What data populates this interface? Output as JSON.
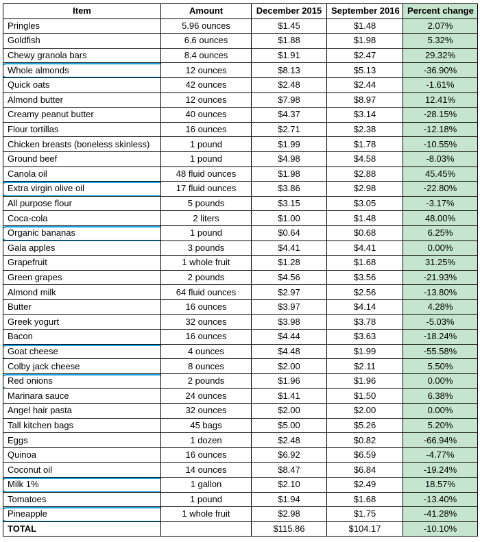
{
  "chart_data": {
    "type": "table",
    "columns": [
      "Item",
      "Amount",
      "December 2015",
      "September 2016",
      "Percent change"
    ],
    "rows": [
      {
        "item": "Pringles",
        "amount": "5.96 ounces",
        "dec": "$1.45",
        "sep": "$1.48",
        "pct": "2.07%",
        "highlighted": false
      },
      {
        "item": "Goldfish",
        "amount": "6.6 ounces",
        "dec": "$1.88",
        "sep": "$1.98",
        "pct": "5.32%",
        "highlighted": false
      },
      {
        "item": "Chewy granola bars",
        "amount": "8.4 ounces",
        "dec": "$1.91",
        "sep": "$2.47",
        "pct": "29.32%",
        "highlighted": false
      },
      {
        "item": "Whole almonds",
        "amount": "12 ounces",
        "dec": "$8.13",
        "sep": "$5.13",
        "pct": "-36.90%",
        "highlighted": true
      },
      {
        "item": "Quick oats",
        "amount": "42 ounces",
        "dec": "$2.48",
        "sep": "$2.44",
        "pct": "-1.61%",
        "highlighted": false
      },
      {
        "item": "Almond butter",
        "amount": "12 ounces",
        "dec": "$7.98",
        "sep": "$8.97",
        "pct": "12.41%",
        "highlighted": false
      },
      {
        "item": "Creamy peanut butter",
        "amount": "40 ounces",
        "dec": "$4.37",
        "sep": "$3.14",
        "pct": "-28.15%",
        "highlighted": false
      },
      {
        "item": "Flour tortillas",
        "amount": "16 ounces",
        "dec": "$2.71",
        "sep": "$2.38",
        "pct": "-12.18%",
        "highlighted": false
      },
      {
        "item": "Chicken breasts (boneless skinless)",
        "amount": "1 pound",
        "dec": "$1.99",
        "sep": "$1.78",
        "pct": "-10.55%",
        "highlighted": false
      },
      {
        "item": "Ground beef",
        "amount": "1 pound",
        "dec": "$4.98",
        "sep": "$4.58",
        "pct": "-8.03%",
        "highlighted": false
      },
      {
        "item": "Canola oil",
        "amount": "48 fluid ounces",
        "dec": "$1.98",
        "sep": "$2.88",
        "pct": "45.45%",
        "highlighted": false
      },
      {
        "item": "Extra virgin olive oil",
        "amount": "17 fluid ounces",
        "dec": "$3.86",
        "sep": "$2.98",
        "pct": "-22.80%",
        "highlighted": true
      },
      {
        "item": "All purpose flour",
        "amount": "5 pounds",
        "dec": "$3.15",
        "sep": "$3.05",
        "pct": "-3.17%",
        "highlighted": false
      },
      {
        "item": "Coca-cola",
        "amount": "2 liters",
        "dec": "$1.00",
        "sep": "$1.48",
        "pct": "48.00%",
        "highlighted": false
      },
      {
        "item": "Organic bananas",
        "amount": "1 pound",
        "dec": "$0.64",
        "sep": "$0.68",
        "pct": "6.25%",
        "highlighted": true
      },
      {
        "item": "Gala apples",
        "amount": "3 pounds",
        "dec": "$4.41",
        "sep": "$4.41",
        "pct": "0.00%",
        "highlighted": false
      },
      {
        "item": "Grapefruit",
        "amount": "1 whole fruit",
        "dec": "$1.28",
        "sep": "$1.68",
        "pct": "31.25%",
        "highlighted": false
      },
      {
        "item": "Green grapes",
        "amount": "2 pounds",
        "dec": "$4.56",
        "sep": "$3.56",
        "pct": "-21.93%",
        "highlighted": false
      },
      {
        "item": "Almond milk",
        "amount": "64 fluid ounces",
        "dec": "$2.97",
        "sep": "$2.56",
        "pct": "-13.80%",
        "highlighted": false
      },
      {
        "item": "Butter",
        "amount": "16 ounces",
        "dec": "$3.97",
        "sep": "$4.14",
        "pct": "4.28%",
        "highlighted": false
      },
      {
        "item": "Greek yogurt",
        "amount": "32 ounces",
        "dec": "$3.98",
        "sep": "$3.78",
        "pct": "-5.03%",
        "highlighted": false
      },
      {
        "item": "Bacon",
        "amount": "16 ounces",
        "dec": "$4.44",
        "sep": "$3.63",
        "pct": "-18.24%",
        "highlighted": false
      },
      {
        "item": "Goat cheese",
        "amount": "4 ounces",
        "dec": "$4.48",
        "sep": "$1.99",
        "pct": "-55.58%",
        "highlighted": true
      },
      {
        "item": "Colby jack cheese",
        "amount": "8 ounces",
        "dec": "$2.00",
        "sep": "$2.11",
        "pct": "5.50%",
        "highlighted": false
      },
      {
        "item": "Red onions",
        "amount": "2 pounds",
        "dec": "$1.96",
        "sep": "$1.96",
        "pct": "0.00%",
        "highlighted": true
      },
      {
        "item": "Marinara sauce",
        "amount": "24 ounces",
        "dec": "$1.41",
        "sep": "$1.50",
        "pct": "6.38%",
        "highlighted": false
      },
      {
        "item": "Angel hair pasta",
        "amount": "32 ounces",
        "dec": "$2.00",
        "sep": "$2.00",
        "pct": "0.00%",
        "highlighted": false
      },
      {
        "item": "Tall kitchen bags",
        "amount": "45 bags",
        "dec": "$5.00",
        "sep": "$5.26",
        "pct": "5.20%",
        "highlighted": false
      },
      {
        "item": "Eggs",
        "amount": "1 dozen",
        "dec": "$2.48",
        "sep": "$0.82",
        "pct": "-66.94%",
        "highlighted": false
      },
      {
        "item": "Quinoa",
        "amount": "16 ounces",
        "dec": "$6.92",
        "sep": "$6.59",
        "pct": "-4.77%",
        "highlighted": false
      },
      {
        "item": "Coconut oil",
        "amount": "14 ounces",
        "dec": "$8.47",
        "sep": "$6.84",
        "pct": "-19.24%",
        "highlighted": false
      },
      {
        "item": "Milk 1%",
        "amount": "1 gallon",
        "dec": "$2.10",
        "sep": "$2.49",
        "pct": "18.57%",
        "highlighted": true
      },
      {
        "item": "Tomatoes",
        "amount": "1 pound",
        "dec": "$1.94",
        "sep": "$1.68",
        "pct": "-13.40%",
        "highlighted": false
      },
      {
        "item": "Pineapple",
        "amount": "1 whole fruit",
        "dec": "$2.98",
        "sep": "$1.75",
        "pct": "-41.28%",
        "highlighted": true
      }
    ],
    "total": {
      "item": "TOTAL",
      "amount": "",
      "dec": "$115.86",
      "sep": "$104.17",
      "pct": "-10.10%"
    }
  },
  "colors": {
    "percent_fill": "#c6e5cf",
    "highlight_outline": "#1aa3e0"
  }
}
